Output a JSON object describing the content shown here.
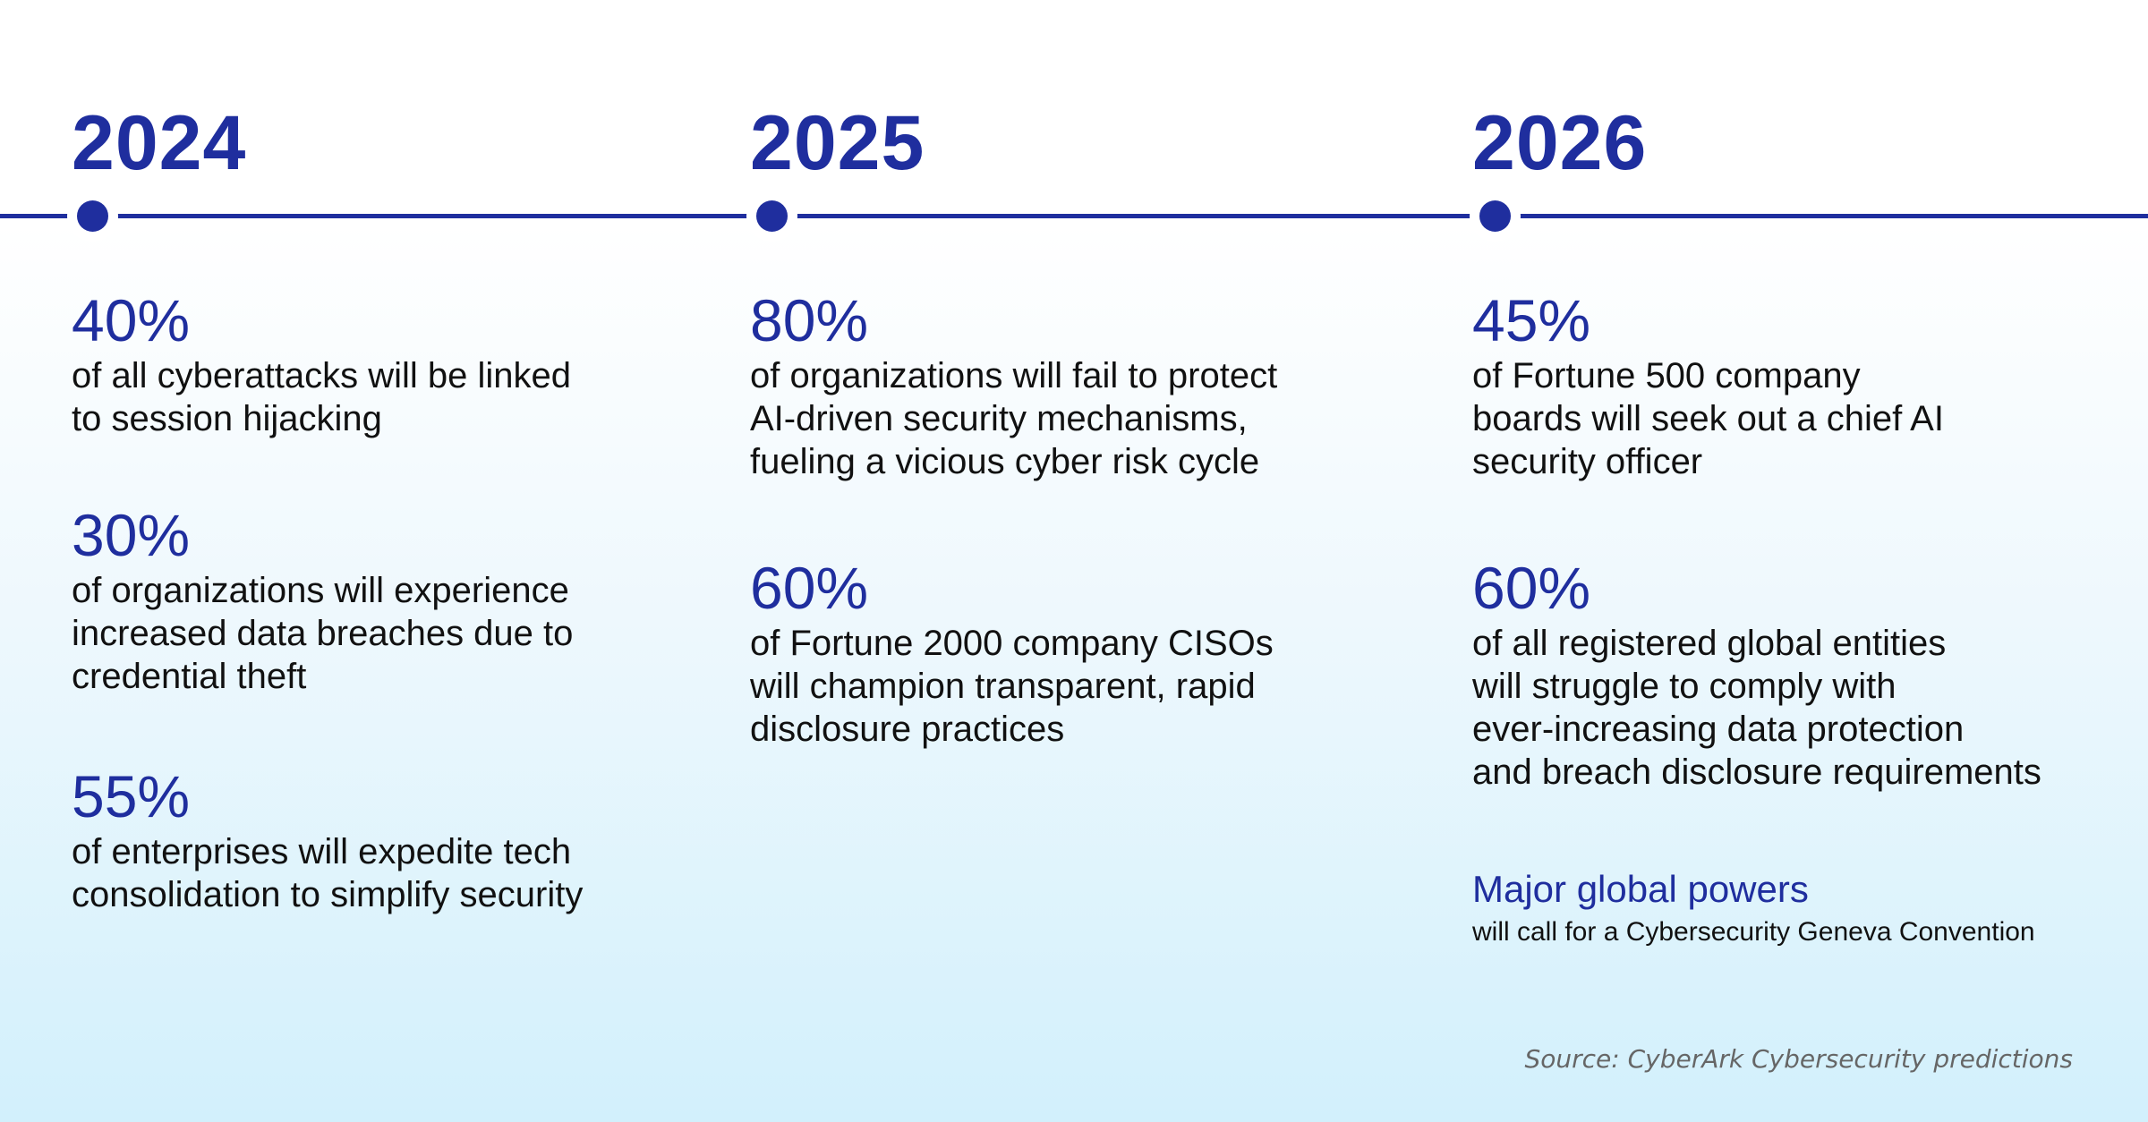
{
  "colors": {
    "accent": "#1f2e9e",
    "text": "#111111",
    "source_text": "#666666",
    "background_top": "#ffffff",
    "background_bottom": "#d2f0fc"
  },
  "timeline": [
    {
      "year": "2024",
      "stats": [
        {
          "value": "40%",
          "description_lines": [
            "of all cyberattacks will be linked",
            "to session hijacking"
          ]
        },
        {
          "value": "30%",
          "description_lines": [
            "of organizations will experience",
            "increased data breaches due to",
            "credential theft"
          ]
        },
        {
          "value": "55%",
          "description_lines": [
            "of enterprises will expedite tech",
            "consolidation to simplify security"
          ]
        }
      ]
    },
    {
      "year": "2025",
      "stats": [
        {
          "value": "80%",
          "description_lines": [
            "of organizations will fail to protect",
            "AI-driven security mechanisms,",
            "fueling a vicious cyber risk cycle"
          ]
        },
        {
          "value": "60%",
          "description_lines": [
            "of Fortune 2000 company CISOs",
            "will champion transparent, rapid",
            "disclosure practices"
          ]
        }
      ]
    },
    {
      "year": "2026",
      "stats": [
        {
          "value": "45%",
          "description_lines": [
            "of Fortune 500 company",
            "boards will seek out a chief AI",
            "security officer"
          ]
        },
        {
          "value": "60%",
          "description_lines": [
            "of all registered global entities",
            "will struggle to comply with",
            "ever-increasing data protection",
            "and breach disclosure requirements"
          ]
        }
      ],
      "highlight": {
        "title": "Major global powers",
        "description": "will call for a Cybersecurity Geneva Convention"
      }
    }
  ],
  "source": "Source: CyberArk Cybersecurity predictions"
}
